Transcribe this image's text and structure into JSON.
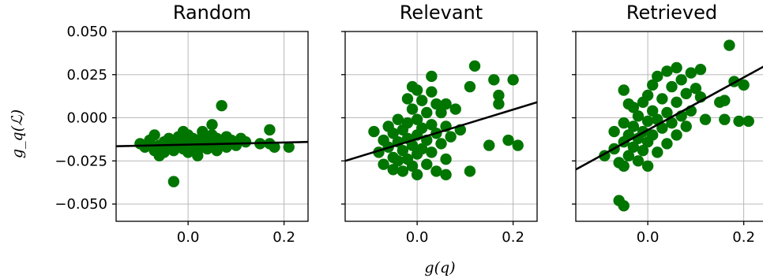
{
  "chart_data": {
    "type": "scatter",
    "sharey": true,
    "xlabel": "g(q)",
    "ylabel": "g_q(ℒ)",
    "ylim": [
      -0.06,
      0.05
    ],
    "yticks": [
      -0.05,
      -0.025,
      0.0,
      0.025,
      0.05
    ],
    "ytick_labels": [
      "−0.050",
      "−0.025",
      "0.000",
      "0.025",
      "0.050"
    ],
    "xlim": [
      -0.15,
      0.25
    ],
    "xticks": [
      0.0,
      0.2
    ],
    "xtick_labels": [
      "0.0",
      "0.2"
    ],
    "grid": true,
    "point_color": "#007500",
    "line_color": "#000000",
    "panels": [
      {
        "title": "Random",
        "fit": {
          "x": [
            -0.15,
            0.25
          ],
          "y": [
            -0.0165,
            -0.014
          ]
        },
        "points": [
          [
            -0.1,
            -0.015
          ],
          [
            -0.09,
            -0.017
          ],
          [
            -0.08,
            -0.013
          ],
          [
            -0.07,
            -0.01
          ],
          [
            -0.07,
            -0.019
          ],
          [
            -0.06,
            -0.016
          ],
          [
            -0.05,
            -0.014
          ],
          [
            -0.05,
            -0.02
          ],
          [
            -0.04,
            -0.012
          ],
          [
            -0.04,
            -0.017
          ],
          [
            -0.03,
            -0.015
          ],
          [
            -0.03,
            -0.019
          ],
          [
            -0.02,
            -0.011
          ],
          [
            -0.02,
            -0.016
          ],
          [
            -0.01,
            -0.013
          ],
          [
            -0.01,
            -0.018
          ],
          [
            0.0,
            -0.01
          ],
          [
            0.0,
            -0.015
          ],
          [
            0.0,
            -0.02
          ],
          [
            0.01,
            -0.012
          ],
          [
            0.01,
            -0.017
          ],
          [
            0.02,
            -0.014
          ],
          [
            0.02,
            -0.019
          ],
          [
            0.03,
            -0.011
          ],
          [
            0.03,
            -0.016
          ],
          [
            0.04,
            -0.013
          ],
          [
            0.04,
            -0.018
          ],
          [
            0.05,
            -0.004
          ],
          [
            0.05,
            -0.01
          ],
          [
            0.05,
            -0.015
          ],
          [
            0.06,
            -0.012
          ],
          [
            0.06,
            -0.019
          ],
          [
            0.07,
            0.007
          ],
          [
            0.07,
            -0.014
          ],
          [
            0.08,
            -0.011
          ],
          [
            0.08,
            -0.017
          ],
          [
            0.09,
            -0.013
          ],
          [
            0.1,
            -0.016
          ],
          [
            0.11,
            -0.012
          ],
          [
            0.12,
            -0.014
          ],
          [
            0.15,
            -0.015
          ],
          [
            0.17,
            -0.007
          ],
          [
            0.17,
            -0.015
          ],
          [
            0.18,
            -0.017
          ],
          [
            0.21,
            -0.017
          ],
          [
            -0.03,
            -0.037
          ],
          [
            0.02,
            -0.022
          ],
          [
            -0.06,
            -0.022
          ],
          [
            0.03,
            -0.008
          ],
          [
            -0.01,
            -0.008
          ]
        ]
      },
      {
        "title": "Relevant",
        "fit": {
          "x": [
            -0.15,
            0.25
          ],
          "y": [
            -0.025,
            0.009
          ]
        },
        "points": [
          [
            -0.09,
            -0.008
          ],
          [
            -0.08,
            -0.02
          ],
          [
            -0.07,
            -0.013
          ],
          [
            -0.07,
            -0.027
          ],
          [
            -0.06,
            -0.005
          ],
          [
            -0.06,
            -0.017
          ],
          [
            -0.05,
            -0.009
          ],
          [
            -0.05,
            -0.023
          ],
          [
            -0.05,
            -0.03
          ],
          [
            -0.04,
            -0.001
          ],
          [
            -0.04,
            -0.014
          ],
          [
            -0.04,
            -0.025
          ],
          [
            -0.03,
            -0.007
          ],
          [
            -0.03,
            -0.019
          ],
          [
            -0.03,
            -0.031
          ],
          [
            -0.02,
            -0.003
          ],
          [
            -0.02,
            -0.012
          ],
          [
            -0.02,
            -0.024
          ],
          [
            -0.01,
            0.005
          ],
          [
            -0.01,
            -0.016
          ],
          [
            -0.01,
            -0.028
          ],
          [
            0.0,
            -0.001
          ],
          [
            0.0,
            -0.01
          ],
          [
            0.0,
            -0.021
          ],
          [
            0.0,
            -0.033
          ],
          [
            0.01,
            0.01
          ],
          [
            0.01,
            -0.006
          ],
          [
            0.01,
            -0.018
          ],
          [
            0.02,
            0.003
          ],
          [
            0.02,
            -0.013
          ],
          [
            0.02,
            -0.027
          ],
          [
            0.03,
            0.015
          ],
          [
            0.03,
            -0.004
          ],
          [
            0.03,
            -0.02
          ],
          [
            0.04,
            0.008
          ],
          [
            0.04,
            -0.009
          ],
          [
            0.04,
            -0.031
          ],
          [
            0.05,
            0.003
          ],
          [
            0.05,
            -0.015
          ],
          [
            0.06,
            0.008
          ],
          [
            0.06,
            -0.005
          ],
          [
            0.06,
            -0.024
          ],
          [
            0.07,
            -0.011
          ],
          [
            0.08,
            0.005
          ],
          [
            0.09,
            -0.007
          ],
          [
            0.11,
            -0.031
          ],
          [
            0.11,
            0.018
          ],
          [
            0.12,
            0.03
          ],
          [
            0.15,
            -0.016
          ],
          [
            0.16,
            0.022
          ],
          [
            0.17,
            0.008
          ],
          [
            0.17,
            0.013
          ],
          [
            0.19,
            -0.013
          ],
          [
            0.2,
            0.022
          ],
          [
            0.21,
            -0.016
          ],
          [
            -0.02,
            0.011
          ],
          [
            0.0,
            0.016
          ],
          [
            0.03,
            0.024
          ],
          [
            -0.01,
            0.018
          ],
          [
            0.06,
            -0.033
          ]
        ]
      },
      {
        "title": "Retrieved",
        "fit": {
          "x": [
            -0.15,
            0.25
          ],
          "y": [
            -0.03,
            0.031
          ]
        },
        "points": [
          [
            -0.09,
            -0.022
          ],
          [
            -0.07,
            -0.008
          ],
          [
            -0.07,
            -0.018
          ],
          [
            -0.06,
            -0.026
          ],
          [
            -0.05,
            0.016
          ],
          [
            -0.05,
            -0.003
          ],
          [
            -0.05,
            -0.014
          ],
          [
            -0.05,
            -0.028
          ],
          [
            -0.04,
            0.008
          ],
          [
            -0.04,
            -0.01
          ],
          [
            -0.04,
            -0.022
          ],
          [
            -0.03,
            0.006
          ],
          [
            -0.03,
            -0.005
          ],
          [
            -0.03,
            -0.017
          ],
          [
            -0.02,
            0.001
          ],
          [
            -0.02,
            -0.012
          ],
          [
            -0.02,
            -0.025
          ],
          [
            -0.01,
            0.009
          ],
          [
            -0.01,
            -0.008
          ],
          [
            -0.01,
            -0.019
          ],
          [
            0.0,
            0.013
          ],
          [
            0.0,
            -0.002
          ],
          [
            0.0,
            -0.014
          ],
          [
            0.0,
            -0.028
          ],
          [
            0.01,
            0.019
          ],
          [
            0.01,
            0.004
          ],
          [
            0.01,
            -0.01
          ],
          [
            0.02,
            0.024
          ],
          [
            0.02,
            -0.001
          ],
          [
            0.02,
            -0.02
          ],
          [
            0.03,
            0.011
          ],
          [
            0.03,
            -0.006
          ],
          [
            0.04,
            0.027
          ],
          [
            0.04,
            0.003
          ],
          [
            0.04,
            -0.015
          ],
          [
            0.05,
            0.018
          ],
          [
            0.05,
            -0.003
          ],
          [
            0.06,
            0.029
          ],
          [
            0.06,
            0.009
          ],
          [
            0.06,
            -0.01
          ],
          [
            0.07,
            0.022
          ],
          [
            0.07,
            0.001
          ],
          [
            0.08,
            0.014
          ],
          [
            0.08,
            -0.005
          ],
          [
            0.09,
            0.026
          ],
          [
            0.09,
            0.004
          ],
          [
            0.1,
            0.017
          ],
          [
            0.11,
            0.028
          ],
          [
            0.11,
            0.012
          ],
          [
            0.12,
            -0.001
          ],
          [
            0.15,
            0.009
          ],
          [
            0.16,
            0.01
          ],
          [
            0.16,
            -0.001
          ],
          [
            0.17,
            0.042
          ],
          [
            0.18,
            0.021
          ],
          [
            0.19,
            -0.002
          ],
          [
            0.2,
            0.019
          ],
          [
            0.21,
            -0.002
          ],
          [
            -0.06,
            -0.048
          ],
          [
            -0.05,
            -0.051
          ]
        ]
      }
    ]
  }
}
